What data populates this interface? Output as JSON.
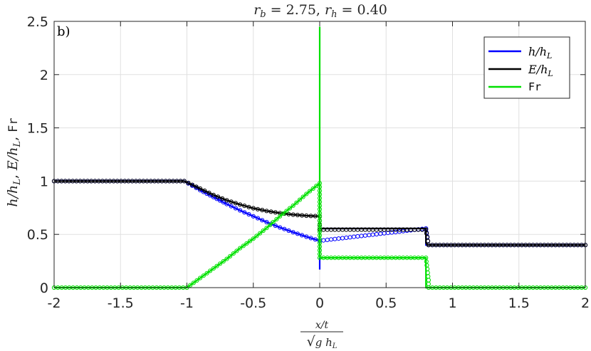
{
  "chart_data": {
    "type": "line",
    "title": "r_b = 2.75,    r_h = 0.40",
    "panel_label": "b)",
    "xlabel_num": "x/t",
    "xlabel_den": "√(g h_L)",
    "ylabel_parts": [
      "h/h_L,",
      "E/h_L,",
      "Fr"
    ],
    "xlim": [
      -2,
      2
    ],
    "ylim": [
      0,
      2.5
    ],
    "xticks": [
      -2,
      -1.5,
      -1,
      -0.5,
      0,
      0.5,
      1,
      1.5,
      2
    ],
    "xtick_labels": [
      "-2",
      "-1.5",
      "-1",
      "-0.5",
      "0",
      "0.5",
      "1",
      "1.5",
      "2"
    ],
    "yticks": [
      0,
      0.5,
      1,
      1.5,
      2,
      2.5
    ],
    "ytick_labels": [
      "0",
      "0.5",
      "1",
      "1.5",
      "2",
      "2.5"
    ],
    "grid": true,
    "legend_position": "top-right",
    "legend": [
      "h/h_L",
      "E/h_L",
      "Fr"
    ],
    "series": [
      {
        "name": "h/h_L",
        "color": "#0000ff",
        "line": [
          [
            -2,
            1
          ],
          [
            -1.02,
            1
          ],
          [
            -0.9,
            0.915
          ],
          [
            -0.8,
            0.85
          ],
          [
            -0.7,
            0.785
          ],
          [
            -0.6,
            0.725
          ],
          [
            -0.5,
            0.67
          ],
          [
            -0.4,
            0.615
          ],
          [
            -0.3,
            0.565
          ],
          [
            -0.2,
            0.52
          ],
          [
            -0.1,
            0.478
          ],
          [
            0,
            0.44
          ],
          [
            0,
            0.17
          ],
          [
            0,
            0.555
          ],
          [
            0.8,
            0.555
          ],
          [
            0.8,
            0.4
          ],
          [
            2,
            0.4
          ]
        ],
        "markers": [
          [
            -2,
            1
          ],
          [
            -1.02,
            1
          ],
          [
            -0.9,
            0.915
          ],
          [
            -0.8,
            0.85
          ],
          [
            -0.7,
            0.785
          ],
          [
            -0.6,
            0.725
          ],
          [
            -0.5,
            0.67
          ],
          [
            -0.4,
            0.615
          ],
          [
            -0.3,
            0.565
          ],
          [
            -0.2,
            0.52
          ],
          [
            -0.1,
            0.478
          ],
          [
            0,
            0.44
          ],
          [
            0.8,
            0.555
          ],
          [
            0.82,
            0.4
          ],
          [
            2,
            0.4
          ]
        ]
      },
      {
        "name": "E/h_L",
        "color": "#000000",
        "line": [
          [
            -2,
            1
          ],
          [
            -1.02,
            1
          ],
          [
            -0.9,
            0.93
          ],
          [
            -0.8,
            0.87
          ],
          [
            -0.7,
            0.82
          ],
          [
            -0.6,
            0.78
          ],
          [
            -0.5,
            0.745
          ],
          [
            -0.4,
            0.72
          ],
          [
            -0.3,
            0.7
          ],
          [
            -0.2,
            0.685
          ],
          [
            -0.1,
            0.675
          ],
          [
            0,
            0.67
          ],
          [
            0,
            0.555
          ],
          [
            0.8,
            0.555
          ],
          [
            0.8,
            0.42
          ],
          [
            0.81,
            0.4
          ],
          [
            2,
            0.4
          ]
        ],
        "markers": [
          [
            -2,
            1
          ],
          [
            -1.02,
            1
          ],
          [
            -0.9,
            0.93
          ],
          [
            -0.8,
            0.87
          ],
          [
            -0.7,
            0.82
          ],
          [
            -0.6,
            0.78
          ],
          [
            -0.5,
            0.745
          ],
          [
            -0.4,
            0.72
          ],
          [
            -0.3,
            0.7
          ],
          [
            -0.2,
            0.685
          ],
          [
            -0.1,
            0.675
          ],
          [
            0,
            0.67
          ],
          [
            0,
            0.545
          ],
          [
            0.8,
            0.545
          ],
          [
            0.82,
            0.4
          ],
          [
            2,
            0.4
          ]
        ]
      },
      {
        "name": "Fr",
        "color": "#00e000",
        "line": [
          [
            -2,
            0
          ],
          [
            -1,
            0
          ],
          [
            -0.9,
            0.09
          ],
          [
            -0.8,
            0.18
          ],
          [
            -0.7,
            0.27
          ],
          [
            -0.6,
            0.37
          ],
          [
            -0.5,
            0.46
          ],
          [
            -0.4,
            0.56
          ],
          [
            -0.3,
            0.67
          ],
          [
            -0.2,
            0.77
          ],
          [
            -0.1,
            0.88
          ],
          [
            0,
            0.98
          ],
          [
            0,
            2.45
          ],
          [
            0,
            0.28
          ],
          [
            0.8,
            0.28
          ],
          [
            0.8,
            0
          ],
          [
            2,
            0
          ]
        ],
        "markers": [
          [
            -2,
            0
          ],
          [
            -1,
            0
          ],
          [
            -0.9,
            0.09
          ],
          [
            -0.8,
            0.18
          ],
          [
            -0.7,
            0.27
          ],
          [
            -0.6,
            0.37
          ],
          [
            -0.5,
            0.46
          ],
          [
            -0.4,
            0.56
          ],
          [
            -0.3,
            0.67
          ],
          [
            -0.2,
            0.77
          ],
          [
            -0.1,
            0.88
          ],
          [
            0,
            0.98
          ],
          [
            0,
            0.28
          ],
          [
            0.8,
            0.28
          ],
          [
            0.82,
            0.07
          ],
          [
            0.82,
            0
          ],
          [
            2,
            0
          ]
        ]
      }
    ]
  }
}
